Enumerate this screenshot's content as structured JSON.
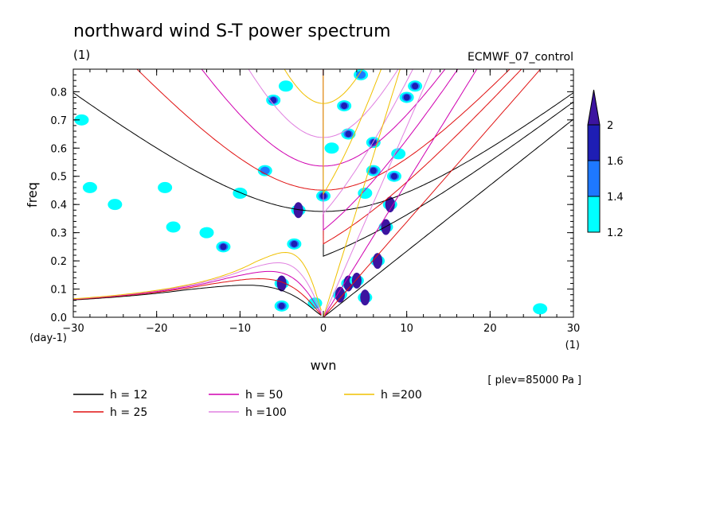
{
  "title": "northward wind S-T power spectrum",
  "subtitle_left": "(1)",
  "subtitle_right": "ECMWF_07_control",
  "level_note": "[ plev=85000 Pa ]",
  "chart_data": {
    "type": "contour",
    "xlabel": "wvn",
    "ylabel": "freq",
    "x_unit": "(1)",
    "y_unit": "(day-1)",
    "xlim": [
      -30,
      30
    ],
    "ylim": [
      0,
      0.88
    ],
    "x_ticks": [
      -30,
      -20,
      -10,
      0,
      10,
      20,
      30
    ],
    "y_ticks": [
      0.0,
      0.1,
      0.2,
      0.3,
      0.4,
      0.5,
      0.6,
      0.7,
      0.8
    ],
    "x_tick_labels": [
      "-30",
      "-20",
      "-10",
      "0",
      "10",
      "20",
      "30"
    ],
    "y_tick_labels": [
      "0.0",
      "0.1",
      "0.2",
      "0.3",
      "0.4",
      "0.5",
      "0.6",
      "0.7",
      "0.8"
    ],
    "colorbar": {
      "levels": [
        1.2,
        1.4,
        1.6,
        2
      ],
      "level_labels": [
        "1.2",
        "1.4",
        "1.6",
        "2"
      ],
      "colors": [
        "#00ffff",
        "#1e78ff",
        "#1e1eb4",
        "#3c14a0"
      ]
    },
    "dispersion_curves": [
      {
        "name": "h = 12",
        "h": 12,
        "color": "#000000"
      },
      {
        "name": "h = 25",
        "h": 25,
        "color": "#e01010"
      },
      {
        "name": "h = 50",
        "h": 50,
        "color": "#d000b0"
      },
      {
        "name": "h =100",
        "h": 100,
        "color": "#e080e0"
      },
      {
        "name": "h =200",
        "h": 200,
        "color": "#f0c000"
      }
    ],
    "signal_blobs": [
      {
        "wvn": -5,
        "freq": 0.12,
        "level": 2
      },
      {
        "wvn": -5,
        "freq": 0.04,
        "level": 1.6
      },
      {
        "wvn": -3.5,
        "freq": 0.26,
        "level": 1.6
      },
      {
        "wvn": -3,
        "freq": 0.38,
        "level": 2
      },
      {
        "wvn": -12,
        "freq": 0.25,
        "level": 1.6
      },
      {
        "wvn": 0,
        "freq": 0.43,
        "level": 1.6
      },
      {
        "wvn": 2,
        "freq": 0.08,
        "level": 2
      },
      {
        "wvn": 3,
        "freq": 0.12,
        "level": 2
      },
      {
        "wvn": 4,
        "freq": 0.13,
        "level": 2
      },
      {
        "wvn": 5,
        "freq": 0.07,
        "level": 2
      },
      {
        "wvn": 6.5,
        "freq": 0.2,
        "level": 2
      },
      {
        "wvn": 7.5,
        "freq": 0.32,
        "level": 2
      },
      {
        "wvn": 8,
        "freq": 0.4,
        "level": 2
      },
      {
        "wvn": 8.5,
        "freq": 0.5,
        "level": 1.6
      },
      {
        "wvn": 6,
        "freq": 0.62,
        "level": 1.6
      },
      {
        "wvn": 3,
        "freq": 0.65,
        "level": 1.6
      },
      {
        "wvn": 6,
        "freq": 0.52,
        "level": 1.6
      },
      {
        "wvn": 2.5,
        "freq": 0.75,
        "level": 1.6
      },
      {
        "wvn": 10,
        "freq": 0.78,
        "level": 1.6
      },
      {
        "wvn": -6,
        "freq": 0.77,
        "level": 1.6
      },
      {
        "wvn": 11,
        "freq": 0.82,
        "level": 1.6
      },
      {
        "wvn": 4.5,
        "freq": 0.86,
        "level": 1.4
      },
      {
        "wvn": -7,
        "freq": 0.52,
        "level": 1.4
      },
      {
        "wvn": -10,
        "freq": 0.44,
        "level": 1.2
      },
      {
        "wvn": -14,
        "freq": 0.3,
        "level": 1.2
      },
      {
        "wvn": -18,
        "freq": 0.32,
        "level": 1.2
      },
      {
        "wvn": -25,
        "freq": 0.4,
        "level": 1.2
      },
      {
        "wvn": -28,
        "freq": 0.46,
        "level": 1.2
      },
      {
        "wvn": -29,
        "freq": 0.7,
        "level": 1.2
      },
      {
        "wvn": -19,
        "freq": 0.46,
        "level": 1.2
      },
      {
        "wvn": 26,
        "freq": 0.03,
        "level": 1.2
      },
      {
        "wvn": -1,
        "freq": 0.05,
        "level": 1.2
      },
      {
        "wvn": 1,
        "freq": 0.6,
        "level": 1.2
      },
      {
        "wvn": 5,
        "freq": 0.44,
        "level": 1.2
      },
      {
        "wvn": 9,
        "freq": 0.58,
        "level": 1.2
      },
      {
        "wvn": -4.5,
        "freq": 0.82,
        "level": 1.2
      }
    ]
  }
}
